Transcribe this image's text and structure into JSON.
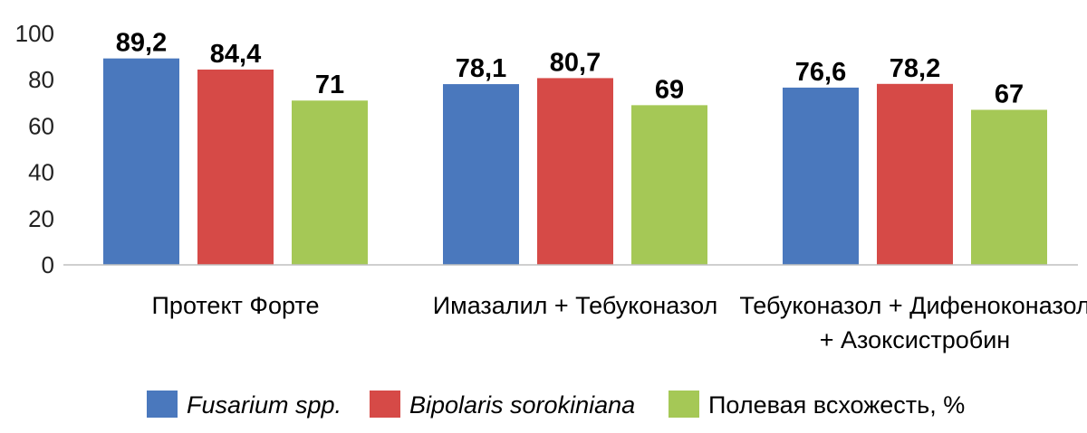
{
  "chart_data": {
    "type": "bar",
    "categories": [
      [
        "Протект Форте"
      ],
      [
        "Имазалил + Тебуконазол"
      ],
      [
        "Тебуконазол + Дифеноконазол",
        "+ Азоксистробин"
      ]
    ],
    "series": [
      {
        "name": "Fusarium spp.",
        "color": "#4a78bd",
        "italic": true,
        "values": [
          89.2,
          78.1,
          76.6
        ],
        "labels": [
          "89,2",
          "78,1",
          "76,6"
        ]
      },
      {
        "name": "Bipolaris sorokiniana",
        "color": "#d64a47",
        "italic": true,
        "values": [
          84.4,
          80.7,
          78.2
        ],
        "labels": [
          "84,4",
          "80,7",
          "78,2"
        ]
      },
      {
        "name": "Полевая всхожесть, %",
        "color": "#a5c856",
        "italic": false,
        "values": [
          71,
          69,
          67
        ],
        "labels": [
          "71",
          "69",
          "67"
        ]
      }
    ],
    "yticks": [
      "0",
      "20",
      "40",
      "60",
      "80",
      "100"
    ],
    "ylim": [
      0,
      100
    ],
    "grid": false,
    "legend_position": "bottom"
  }
}
